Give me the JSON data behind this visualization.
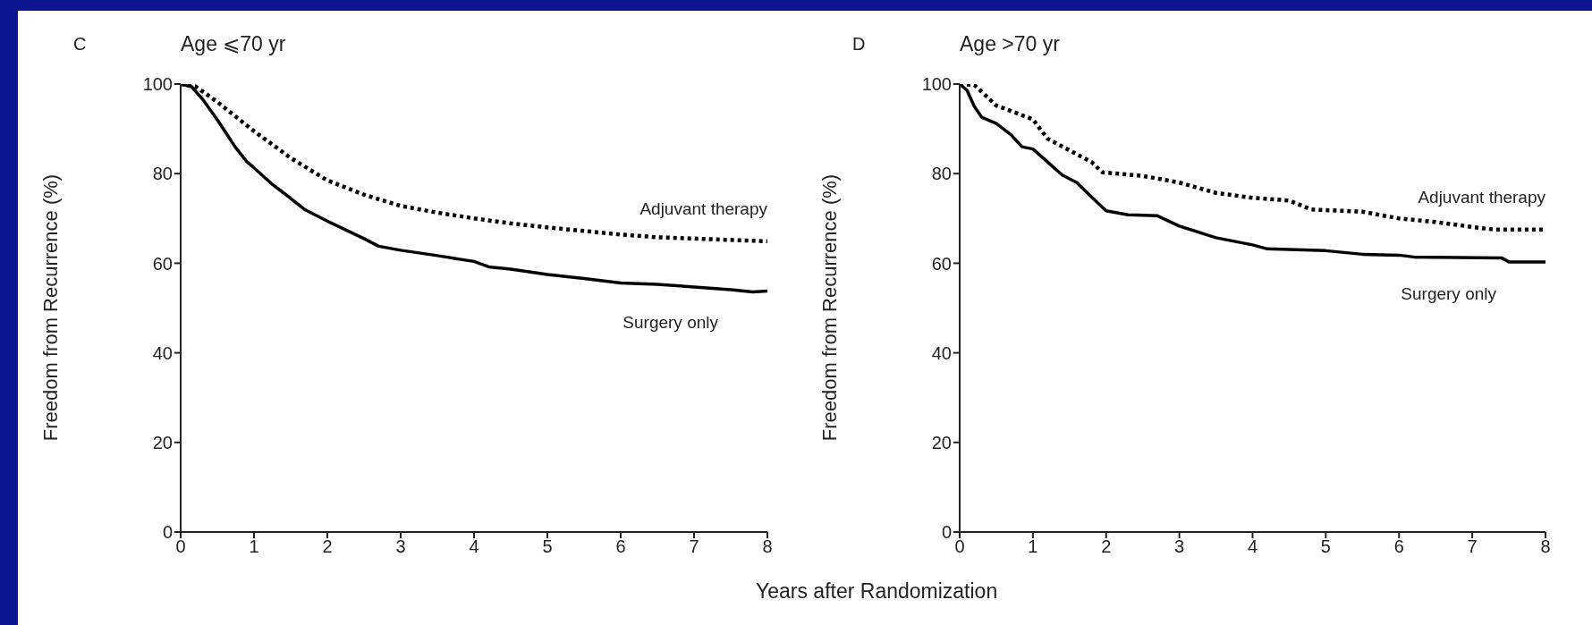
{
  "chart_data": [
    {
      "type": "line",
      "title": "Age ⩽70 yr",
      "annotations": [
        "C"
      ],
      "xlabel": "Years after Randomization",
      "ylabel": "Freedom from Recurrence (%)",
      "xlim": [
        0,
        8
      ],
      "xticks": [
        0,
        1,
        2,
        3,
        4,
        5,
        6,
        7,
        8
      ],
      "ylim": [
        0,
        100
      ],
      "yticks": [
        0,
        20,
        40,
        60,
        80,
        100
      ],
      "grid": false,
      "legend": false,
      "marker": "none",
      "series": [
        {
          "name": "Adjuvant therapy",
          "color": "#000000",
          "line_style": "dotted",
          "x": [
            0,
            0.2,
            0.5,
            1,
            1.5,
            2,
            2.5,
            3,
            3.5,
            4,
            4.5,
            5,
            5.5,
            6,
            6.5,
            7,
            7.5,
            8
          ],
          "values": [
            100,
            99.5,
            96,
            89.5,
            83.5,
            78.5,
            75.3,
            72.8,
            71.3,
            70,
            68.9,
            68,
            67.2,
            66.4,
            65.8,
            65.5,
            65.2,
            64.9
          ]
        },
        {
          "name": "Surgery only",
          "color": "#000000",
          "line_style": "solid",
          "x": [
            0,
            0.15,
            0.3,
            0.5,
            0.75,
            0.9,
            1,
            1.25,
            1.5,
            1.7,
            2,
            2.5,
            2.7,
            3,
            3.5,
            4,
            4.2,
            4.5,
            5,
            5.5,
            6,
            6.5,
            7,
            7.5,
            7.8,
            8
          ],
          "values": [
            100,
            99.4,
            96.6,
            92,
            85.8,
            82.7,
            81.3,
            77.6,
            74.5,
            71.9,
            69.4,
            65.5,
            63.8,
            62.9,
            61.7,
            60.4,
            59.2,
            58.7,
            57.5,
            56.6,
            55.6,
            55.3,
            54.7,
            54.1,
            53.6,
            53.8
          ]
        }
      ]
    },
    {
      "type": "line",
      "title": "Age >70 yr",
      "annotations": [
        "D"
      ],
      "ylabel": "Freedom from Recurrence (%)",
      "xlim": [
        0,
        8
      ],
      "xticks": [
        0,
        1,
        2,
        3,
        4,
        5,
        6,
        7,
        8
      ],
      "ylim": [
        0,
        100
      ],
      "yticks": [
        0,
        20,
        40,
        60,
        80,
        100
      ],
      "grid": false,
      "legend": false,
      "marker": "none",
      "series": [
        {
          "name": "Adjuvant therapy",
          "color": "#000000",
          "line_style": "dotted",
          "x": [
            0,
            0.2,
            0.5,
            0.7,
            1,
            1.2,
            1.5,
            1.8,
            1.95,
            2.5,
            3,
            3.5,
            4,
            4.5,
            4.8,
            5.5,
            6,
            6.5,
            7,
            7.3,
            8
          ],
          "values": [
            100,
            99.8,
            95.2,
            94,
            92.1,
            87.8,
            85.2,
            82.6,
            80.3,
            79.5,
            78,
            75.7,
            74.6,
            74,
            72,
            71.5,
            70,
            69.2,
            68.1,
            67.5,
            67.5
          ]
        },
        {
          "name": "Surgery only",
          "color": "#000000",
          "line_style": "solid",
          "x": [
            0,
            0.1,
            0.2,
            0.3,
            0.5,
            0.7,
            0.85,
            1,
            1.2,
            1.4,
            1.6,
            1.8,
            2,
            2.3,
            2.7,
            3,
            3.5,
            4,
            4.2,
            5,
            5.5,
            6,
            6.2,
            7.4,
            7.5,
            8
          ],
          "values": [
            100,
            98.6,
            95,
            92.6,
            91.2,
            88.7,
            86,
            85.5,
            82.6,
            79.7,
            78,
            74.8,
            71.7,
            70.8,
            70.6,
            68.3,
            65.7,
            64.1,
            63.2,
            62.8,
            62,
            61.8,
            61.4,
            61.2,
            60.3,
            60.3
          ]
        }
      ]
    }
  ]
}
